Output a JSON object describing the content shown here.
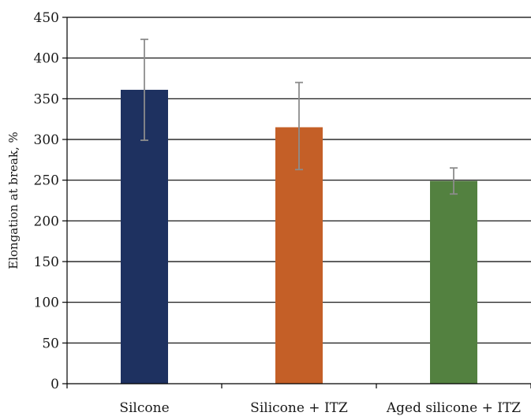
{
  "chart_data": {
    "type": "bar",
    "title": "",
    "xlabel": "",
    "ylabel": "Elongation at break, %",
    "ylim": [
      0,
      450
    ],
    "yticks": [
      0,
      50,
      100,
      150,
      200,
      250,
      300,
      350,
      400,
      450
    ],
    "grid": "horizontal",
    "categories": [
      "Silcone",
      "Silicone + ITZ",
      "Aged silicone + ITZ"
    ],
    "values": [
      361,
      315,
      249
    ],
    "error_low": [
      299,
      263,
      233
    ],
    "error_high": [
      423,
      370,
      265
    ],
    "colors": [
      "#1e3160",
      "#c45f27",
      "#538140"
    ],
    "errorbar_color": "#8c8c8c",
    "gridline_color": "#000000"
  }
}
